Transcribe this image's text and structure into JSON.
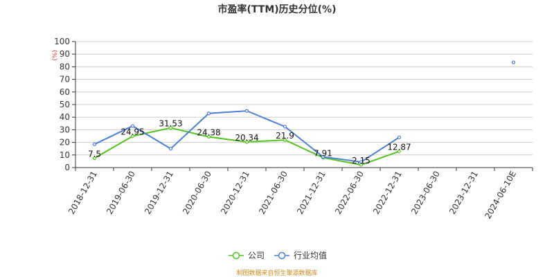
{
  "chart_data": {
    "type": "line",
    "title": "市盈率(TTM)历史分位(%)",
    "y_unit": "(%)",
    "ylim": [
      0,
      100
    ],
    "yticks": [
      0,
      10,
      20,
      30,
      40,
      50,
      60,
      70,
      80,
      90,
      100
    ],
    "categories": [
      "2018-12-31",
      "2019-06-30",
      "2019-12-31",
      "2020-06-30",
      "2020-12-31",
      "2021-06-30",
      "2021-12-31",
      "2022-06-30",
      "2022-12-31",
      "2023-06-30",
      "2023-12-31",
      "2024-06-10E"
    ],
    "series": [
      {
        "name": "公司",
        "color": "#52c41a",
        "values": [
          7.5,
          24.95,
          31.53,
          24.38,
          20.34,
          21.9,
          7.91,
          2.15,
          12.87,
          null,
          null,
          null
        ],
        "labels": [
          "7.5",
          "24.95",
          "31.53",
          "24.38",
          "20.34",
          "21.9",
          "7.91",
          "2.15",
          "12.87",
          null,
          null,
          null
        ]
      },
      {
        "name": "行业均值",
        "color": "#4a7fdc",
        "values": [
          18.5,
          33,
          15,
          43,
          45,
          32.5,
          8.5,
          4.5,
          24,
          null,
          null,
          83.5
        ]
      }
    ],
    "grid": true,
    "legend_position": "bottom-center"
  },
  "footer": {
    "source": "制图数据来自恒生聚源数据库"
  }
}
